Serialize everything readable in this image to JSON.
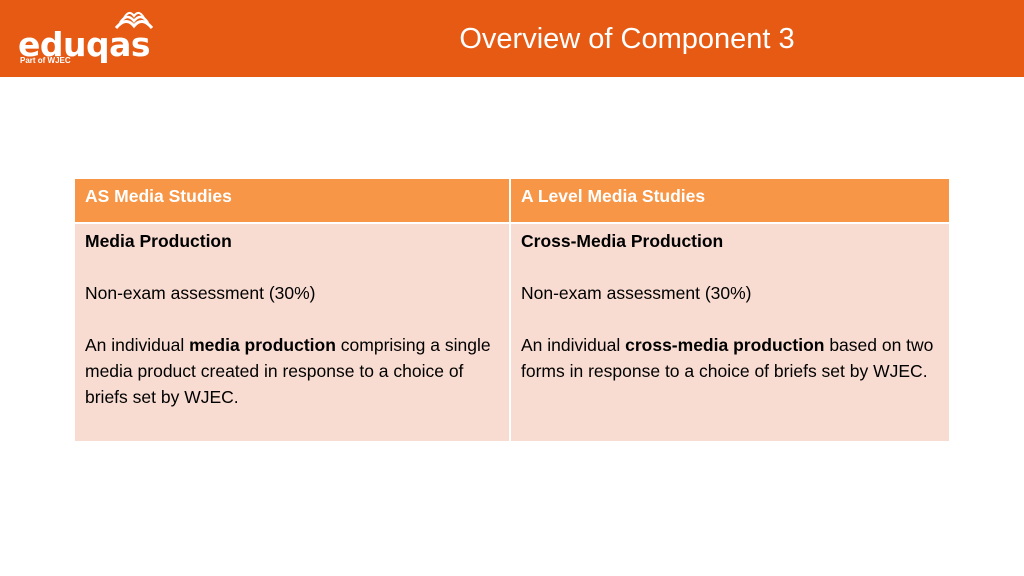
{
  "header": {
    "logo_text": "eduqas",
    "logo_subtext": "Part of WJEC",
    "title": "Overview of Component 3",
    "background_color": "#e65a13"
  },
  "table": {
    "header_color": "#f79646",
    "body_color": "#f9dcd1",
    "columns": [
      {
        "heading": "AS Media Studies",
        "component": "Media Production",
        "assessment": "Non-exam assessment (30%)",
        "desc_pre": "An individual ",
        "desc_bold": "media production",
        "desc_post": " comprising a single media product created in response to a choice of briefs set by WJEC."
      },
      {
        "heading": "A Level Media Studies",
        "component": "Cross-Media Production",
        "assessment": "Non-exam assessment (30%)",
        "desc_pre": "An individual ",
        "desc_bold": "cross-media production",
        "desc_post": " based on two forms in response to a choice of briefs set by WJEC."
      }
    ]
  }
}
